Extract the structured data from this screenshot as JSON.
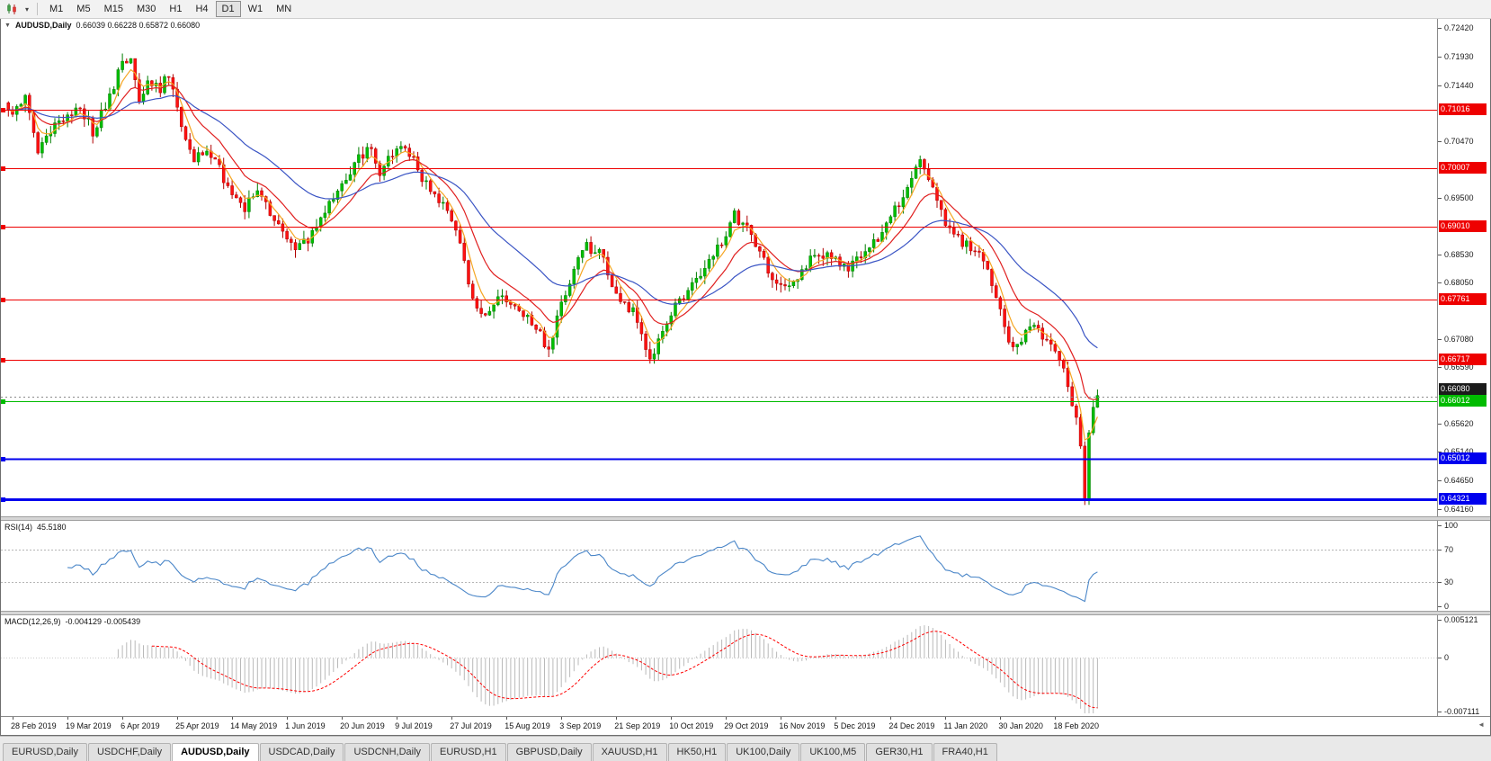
{
  "toolbar": {
    "timeframes": [
      "M1",
      "M5",
      "M15",
      "M30",
      "H1",
      "H4",
      "D1",
      "W1",
      "MN"
    ],
    "active_timeframe": "D1"
  },
  "tabs": {
    "items": [
      "EURUSD,Daily",
      "USDCHF,Daily",
      "AUDUSD,Daily",
      "USDCAD,Daily",
      "USDCNH,Daily",
      "EURUSD,H1",
      "GBPUSD,Daily",
      "XAUUSD,H1",
      "HK50,H1",
      "UK100,Daily",
      "UK100,M5",
      "GER30,H1",
      "FRA40,H1"
    ],
    "active": "AUDUSD,Daily"
  },
  "chart_data": {
    "type": "candlestick",
    "title": "AUDUSD,Daily",
    "collapse_arrow": "▼",
    "ohlc_text": "0.66039 0.66228 0.65872 0.66080",
    "open": "0.66039",
    "high": "0.66228",
    "low": "0.65872",
    "close": "0.66080",
    "candle_count": 259,
    "label_start_index": 1,
    "label_step": 13,
    "x_labels": [
      "28 Feb 2019",
      "19 Mar 2019",
      "6 Apr 2019",
      "25 Apr 2019",
      "14 May 2019",
      "1 Jun 2019",
      "20 Jun 2019",
      "9 Jul 2019",
      "27 Jul 2019",
      "15 Aug 2019",
      "3 Sep 2019",
      "21 Sep 2019",
      "10 Oct 2019",
      "29 Oct 2019",
      "16 Nov 2019",
      "5 Dec 2019",
      "24 Dec 2019",
      "11 Jan 2020",
      "30 Jan 2020",
      "18 Feb 2020"
    ],
    "price_axis": {
      "top": 0.7258,
      "bottom": 0.6403,
      "ticks": [
        "0.72420",
        "0.71930",
        "0.71440",
        "0.70470",
        "0.69500",
        "0.68530",
        "0.68050",
        "0.67080",
        "0.66590",
        "0.65620",
        "0.65140",
        "0.64650",
        "0.64160"
      ]
    },
    "levels": [
      {
        "value": 0.71016,
        "label": "0.71016",
        "color": "#ee0000",
        "width": 1
      },
      {
        "value": 0.70007,
        "label": "0.70007",
        "color": "#ee0000",
        "width": 1
      },
      {
        "value": 0.6901,
        "label": "0.69010",
        "color": "#ee0000",
        "width": 1
      },
      {
        "value": 0.67761,
        "label": "0.67761",
        "color": "#ee0000",
        "width": 1
      },
      {
        "value": 0.66717,
        "label": "0.66717",
        "color": "#ee0000",
        "width": 1
      },
      {
        "value": 0.66012,
        "label": "0.66012",
        "color": "#00bb00",
        "width": 1
      },
      {
        "value": 0.65012,
        "label": "0.65012",
        "color": "#0000ee",
        "width": 2
      },
      {
        "value": 0.64321,
        "label": "0.64321",
        "color": "#0000ee",
        "width": 3
      }
    ],
    "current_price": {
      "value": 0.6608,
      "label": "0.66080",
      "bg": "#1b1b1b"
    },
    "candle_colors": {
      "up": "#00bf00",
      "up_stroke": "#007d00",
      "down": "#ff1111",
      "down_stroke": "#b00000"
    },
    "moving_averages": [
      {
        "period": 5,
        "color": "#f5a623"
      },
      {
        "period": 13,
        "color": "#e02020"
      },
      {
        "period": 34,
        "color": "#3a54c4"
      }
    ],
    "close_waypoints": [
      [
        0,
        0.7095
      ],
      [
        4,
        0.7125
      ],
      [
        7,
        0.703
      ],
      [
        11,
        0.7075
      ],
      [
        14,
        0.709
      ],
      [
        17,
        0.7105
      ],
      [
        20,
        0.7065
      ],
      [
        24,
        0.7125
      ],
      [
        27,
        0.718
      ],
      [
        29,
        0.7195
      ],
      [
        31,
        0.712
      ],
      [
        33,
        0.7155
      ],
      [
        36,
        0.714
      ],
      [
        38,
        0.7165
      ],
      [
        41,
        0.707
      ],
      [
        44,
        0.7015
      ],
      [
        47,
        0.7035
      ],
      [
        50,
        0.7
      ],
      [
        53,
        0.6955
      ],
      [
        56,
        0.6935
      ],
      [
        59,
        0.696
      ],
      [
        62,
        0.6925
      ],
      [
        65,
        0.6895
      ],
      [
        68,
        0.687
      ],
      [
        71,
        0.688
      ],
      [
        74,
        0.692
      ],
      [
        77,
        0.6955
      ],
      [
        80,
        0.6985
      ],
      [
        83,
        0.702
      ],
      [
        86,
        0.704
      ],
      [
        88,
        0.6995
      ],
      [
        90,
        0.7015
      ],
      [
        92,
        0.704
      ],
      [
        95,
        0.703
      ],
      [
        98,
        0.6985
      ],
      [
        101,
        0.696
      ],
      [
        104,
        0.6925
      ],
      [
        107,
        0.688
      ],
      [
        109,
        0.68
      ],
      [
        111,
        0.676
      ],
      [
        114,
        0.6755
      ],
      [
        117,
        0.6785
      ],
      [
        120,
        0.677
      ],
      [
        123,
        0.674
      ],
      [
        126,
        0.6715
      ],
      [
        128,
        0.669
      ],
      [
        131,
        0.6765
      ],
      [
        134,
        0.683
      ],
      [
        137,
        0.6865
      ],
      [
        140,
        0.686
      ],
      [
        143,
        0.68
      ],
      [
        146,
        0.677
      ],
      [
        149,
        0.6745
      ],
      [
        152,
        0.6672
      ],
      [
        155,
        0.672
      ],
      [
        158,
        0.6765
      ],
      [
        161,
        0.679
      ],
      [
        164,
        0.6815
      ],
      [
        167,
        0.6855
      ],
      [
        170,
        0.6885
      ],
      [
        172,
        0.692
      ],
      [
        175,
        0.69
      ],
      [
        178,
        0.6855
      ],
      [
        181,
        0.6815
      ],
      [
        184,
        0.679
      ],
      [
        187,
        0.6805
      ],
      [
        190,
        0.6845
      ],
      [
        193,
        0.6855
      ],
      [
        196,
        0.6845
      ],
      [
        199,
        0.6825
      ],
      [
        202,
        0.685
      ],
      [
        205,
        0.687
      ],
      [
        208,
        0.6905
      ],
      [
        211,
        0.694
      ],
      [
        214,
        0.6985
      ],
      [
        216,
        0.7025
      ],
      [
        218,
        0.699
      ],
      [
        220,
        0.6945
      ],
      [
        222,
        0.6905
      ],
      [
        225,
        0.688
      ],
      [
        228,
        0.6865
      ],
      [
        231,
        0.6845
      ],
      [
        234,
        0.6775
      ],
      [
        237,
        0.6705
      ],
      [
        239,
        0.669
      ],
      [
        242,
        0.673
      ],
      [
        245,
        0.6715
      ],
      [
        248,
        0.669
      ],
      [
        250,
        0.6655
      ],
      [
        252,
        0.66
      ],
      [
        253,
        0.6565
      ],
      [
        254,
        0.652
      ],
      [
        255,
        0.6436
      ],
      [
        256,
        0.6555
      ],
      [
        257,
        0.6585
      ],
      [
        258,
        0.6608
      ]
    ],
    "rsi": {
      "label": "RSI(14)",
      "value": "45.5180",
      "color": "#4a86c8",
      "scale": [
        "100",
        "70",
        "30",
        "0"
      ],
      "guide_levels": [
        70,
        30
      ],
      "range": [
        0,
        100
      ]
    },
    "macd": {
      "label": "MACD(12,26,9)",
      "value": "-0.004129 -0.005439",
      "scale": [
        "0.005121",
        "0",
        "-0.007111"
      ],
      "range_top": 0.005121,
      "range_bottom": -0.007111,
      "histogram_color": "#b9b9b9",
      "signal_color": "#ff0000"
    }
  }
}
